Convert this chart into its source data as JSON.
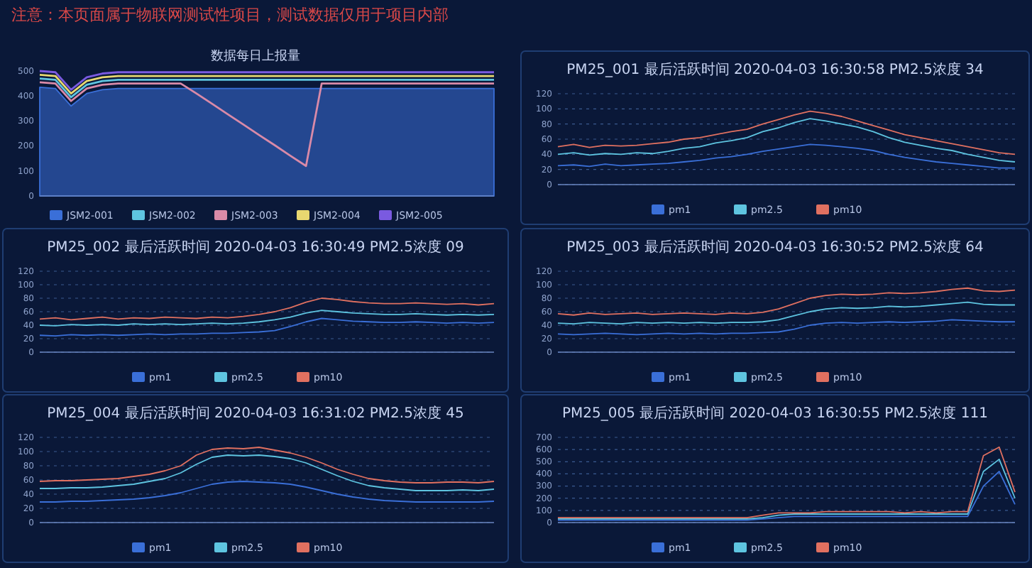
{
  "chart_data": [
    {
      "type": "area",
      "title": "数据每日上报量",
      "annotations": [
        "注意：本页面属于物联网测试性项目，测试数据仅用于项目内部"
      ],
      "categories": [
        null,
        null,
        null,
        null,
        null,
        null,
        null,
        null,
        null,
        null,
        null,
        null,
        null,
        null,
        null,
        null,
        null,
        null,
        null,
        null,
        null,
        null,
        null,
        null,
        null,
        null,
        null,
        null,
        null,
        null
      ],
      "ylim": [
        0,
        500
      ],
      "yticks": [
        0,
        100,
        200,
        300,
        400,
        500
      ],
      "tick_labels": "y",
      "legend": "bottom",
      "series": [
        {
          "name": "JSM2-001",
          "color": "#3a6fd8",
          "values": [
            435,
            430,
            360,
            410,
            425,
            430,
            430,
            430,
            430,
            430,
            430,
            430,
            430,
            430,
            430,
            430,
            430,
            430,
            430,
            430,
            430,
            430,
            430,
            430,
            430,
            430,
            430,
            430,
            430,
            430
          ]
        },
        {
          "name": "JSM2-002",
          "type": "line",
          "color": "#5ec4e0",
          "values": [
            470,
            465,
            395,
            445,
            460,
            465,
            465,
            465,
            465,
            465,
            465,
            465,
            465,
            465,
            465,
            465,
            465,
            465,
            465,
            465,
            465,
            465,
            465,
            465,
            465,
            465,
            465,
            465,
            465,
            465
          ]
        },
        {
          "name": "JSM2-003",
          "type": "line",
          "color": "#d98aa8",
          "values": [
            455,
            450,
            380,
            430,
            445,
            450,
            450,
            450,
            450,
            450,
            410,
            369,
            327,
            286,
            244,
            203,
            161,
            120,
            450,
            450,
            450,
            450,
            450,
            450,
            450,
            450,
            450,
            450,
            450,
            450
          ]
        },
        {
          "name": "JSM2-004",
          "type": "line",
          "color": "#e8d870",
          "values": [
            485,
            480,
            410,
            460,
            475,
            480,
            480,
            480,
            480,
            480,
            480,
            480,
            480,
            480,
            480,
            480,
            480,
            480,
            480,
            480,
            480,
            480,
            480,
            480,
            480,
            480,
            480,
            480,
            480,
            480
          ]
        },
        {
          "name": "JSM2-005",
          "type": "line",
          "color": "#7a5ae0",
          "values": [
            500,
            495,
            425,
            475,
            490,
            495,
            495,
            495,
            495,
            495,
            495,
            495,
            495,
            495,
            495,
            495,
            495,
            495,
            495,
            495,
            495,
            495,
            495,
            495,
            495,
            495,
            495,
            495,
            495,
            495
          ]
        }
      ]
    },
    {
      "type": "line",
      "title": "PM25_001 最后活跃时间 2020-04-03 16:30:58 PM2.5浓度 34",
      "categories": [
        null,
        null,
        null,
        null,
        null,
        null,
        null,
        null,
        null,
        null,
        null,
        null,
        null,
        null,
        null,
        null,
        null,
        null,
        null,
        null,
        null,
        null,
        null,
        null,
        null,
        null,
        null,
        null,
        null,
        null
      ],
      "ylim": [
        0,
        120
      ],
      "yticks": [
        0,
        20,
        40,
        60,
        80,
        100,
        120
      ],
      "tick_labels": "y",
      "grid": "y",
      "legend": "bottom",
      "series": [
        {
          "name": "pm1",
          "color": "#3a6fd8",
          "values": [
            25,
            26,
            24,
            27,
            25,
            26,
            27,
            28,
            30,
            32,
            35,
            37,
            40,
            44,
            47,
            50,
            53,
            52,
            50,
            48,
            45,
            40,
            36,
            33,
            30,
            28,
            26,
            24,
            22,
            22
          ]
        },
        {
          "name": "pm2.5",
          "color": "#5ec4e0",
          "values": [
            40,
            42,
            39,
            41,
            40,
            42,
            41,
            44,
            48,
            50,
            55,
            58,
            62,
            70,
            75,
            82,
            87,
            84,
            80,
            76,
            70,
            62,
            56,
            52,
            48,
            45,
            40,
            36,
            32,
            30
          ]
        },
        {
          "name": "pm10",
          "color": "#e07060",
          "values": [
            50,
            53,
            49,
            52,
            51,
            52,
            54,
            56,
            60,
            62,
            66,
            70,
            73,
            80,
            86,
            92,
            97,
            94,
            90,
            84,
            78,
            72,
            66,
            62,
            58,
            54,
            50,
            46,
            42,
            40
          ]
        }
      ]
    },
    {
      "type": "line",
      "title": "PM25_002 最后活跃时间 2020-04-03 16:30:49 PM2.5浓度 09",
      "categories": [
        null,
        null,
        null,
        null,
        null,
        null,
        null,
        null,
        null,
        null,
        null,
        null,
        null,
        null,
        null,
        null,
        null,
        null,
        null,
        null,
        null,
        null,
        null,
        null,
        null,
        null,
        null,
        null,
        null,
        null
      ],
      "ylim": [
        0,
        120
      ],
      "yticks": [
        0,
        20,
        40,
        60,
        80,
        100,
        120
      ],
      "tick_labels": "y",
      "grid": "y",
      "legend": "bottom",
      "series": [
        {
          "name": "pm1",
          "color": "#3a6fd8",
          "values": [
            25,
            24,
            26,
            25,
            26,
            25,
            26,
            27,
            26,
            27,
            27,
            28,
            28,
            29,
            30,
            32,
            38,
            45,
            50,
            48,
            46,
            45,
            44,
            44,
            45,
            44,
            43,
            44,
            43,
            44
          ]
        },
        {
          "name": "pm2.5",
          "color": "#5ec4e0",
          "values": [
            40,
            39,
            41,
            40,
            41,
            40,
            42,
            41,
            42,
            41,
            42,
            43,
            42,
            43,
            45,
            48,
            52,
            58,
            62,
            60,
            58,
            57,
            56,
            56,
            57,
            56,
            55,
            56,
            55,
            56
          ]
        },
        {
          "name": "pm10",
          "color": "#e07060",
          "values": [
            49,
            51,
            48,
            50,
            52,
            49,
            51,
            50,
            52,
            51,
            50,
            52,
            51,
            53,
            56,
            60,
            66,
            74,
            80,
            78,
            75,
            73,
            72,
            72,
            73,
            72,
            71,
            72,
            70,
            72
          ]
        }
      ]
    },
    {
      "type": "line",
      "title": "PM25_003 最后活跃时间 2020-04-03 16:30:52 PM2.5浓度 64",
      "categories": [
        null,
        null,
        null,
        null,
        null,
        null,
        null,
        null,
        null,
        null,
        null,
        null,
        null,
        null,
        null,
        null,
        null,
        null,
        null,
        null,
        null,
        null,
        null,
        null,
        null,
        null,
        null,
        null,
        null,
        null
      ],
      "ylim": [
        0,
        120
      ],
      "yticks": [
        0,
        20,
        40,
        60,
        80,
        100,
        120
      ],
      "tick_labels": "y",
      "grid": "y",
      "legend": "bottom",
      "series": [
        {
          "name": "pm1",
          "color": "#3a6fd8",
          "values": [
            27,
            26,
            27,
            28,
            27,
            26,
            27,
            28,
            27,
            28,
            27,
            28,
            28,
            29,
            30,
            34,
            40,
            43,
            44,
            43,
            44,
            45,
            44,
            45,
            46,
            48,
            47,
            46,
            45,
            45
          ]
        },
        {
          "name": "pm2.5",
          "color": "#5ec4e0",
          "values": [
            43,
            42,
            44,
            43,
            42,
            44,
            43,
            44,
            43,
            44,
            43,
            44,
            44,
            45,
            48,
            54,
            60,
            64,
            66,
            65,
            66,
            68,
            67,
            68,
            70,
            72,
            74,
            71,
            70,
            70
          ]
        },
        {
          "name": "pm10",
          "color": "#e07060",
          "values": [
            57,
            55,
            58,
            56,
            57,
            58,
            56,
            57,
            58,
            57,
            56,
            58,
            57,
            59,
            64,
            72,
            80,
            84,
            86,
            85,
            86,
            88,
            87,
            88,
            90,
            93,
            95,
            91,
            90,
            92
          ]
        }
      ]
    },
    {
      "type": "line",
      "title": "PM25_004 最后活跃时间 2020-04-03 16:31:02 PM2.5浓度 45",
      "categories": [
        null,
        null,
        null,
        null,
        null,
        null,
        null,
        null,
        null,
        null,
        null,
        null,
        null,
        null,
        null,
        null,
        null,
        null,
        null,
        null,
        null,
        null,
        null,
        null,
        null,
        null,
        null,
        null,
        null,
        null
      ],
      "ylim": [
        0,
        120
      ],
      "yticks": [
        0,
        20,
        40,
        60,
        80,
        100,
        120
      ],
      "tick_labels": "y",
      "grid": "y",
      "legend": "bottom",
      "series": [
        {
          "name": "pm1",
          "color": "#3a6fd8",
          "values": [
            29,
            29,
            30,
            30,
            31,
            32,
            33,
            35,
            38,
            42,
            48,
            54,
            57,
            58,
            57,
            56,
            54,
            50,
            45,
            40,
            36,
            33,
            31,
            30,
            29,
            29,
            29,
            29,
            29,
            30
          ]
        },
        {
          "name": "pm2.5",
          "color": "#5ec4e0",
          "values": [
            48,
            48,
            49,
            49,
            50,
            52,
            54,
            58,
            62,
            70,
            82,
            92,
            95,
            94,
            95,
            93,
            90,
            84,
            75,
            66,
            58,
            52,
            49,
            47,
            45,
            45,
            45,
            46,
            45,
            47
          ]
        },
        {
          "name": "pm10",
          "color": "#e07060",
          "values": [
            58,
            59,
            59,
            60,
            61,
            62,
            65,
            68,
            73,
            80,
            95,
            103,
            105,
            104,
            106,
            102,
            98,
            92,
            84,
            75,
            68,
            62,
            59,
            57,
            56,
            56,
            57,
            57,
            56,
            58
          ]
        }
      ]
    },
    {
      "type": "line",
      "title": "PM25_005 最后活跃时间 2020-04-03 16:30:55 PM2.5浓度 111",
      "categories": [
        null,
        null,
        null,
        null,
        null,
        null,
        null,
        null,
        null,
        null,
        null,
        null,
        null,
        null,
        null,
        null,
        null,
        null,
        null,
        null,
        null,
        null,
        null,
        null,
        null,
        null,
        null,
        null,
        null,
        null
      ],
      "ylim": [
        0,
        700
      ],
      "yticks": [
        0,
        100,
        200,
        300,
        400,
        500,
        600,
        700
      ],
      "tick_labels": "y",
      "grid": "y",
      "legend": "bottom",
      "series": [
        {
          "name": "pm1",
          "color": "#3a6fd8",
          "values": [
            20,
            20,
            20,
            20,
            20,
            20,
            20,
            20,
            20,
            20,
            20,
            20,
            20,
            30,
            40,
            50,
            50,
            50,
            50,
            50,
            50,
            50,
            50,
            50,
            50,
            50,
            50,
            300,
            420,
            150
          ]
        },
        {
          "name": "pm2.5",
          "color": "#5ec4e0",
          "values": [
            30,
            30,
            30,
            30,
            30,
            30,
            30,
            30,
            30,
            30,
            30,
            30,
            30,
            40,
            60,
            70,
            70,
            70,
            70,
            70,
            70,
            70,
            70,
            70,
            70,
            70,
            70,
            420,
            520,
            200
          ]
        },
        {
          "name": "pm10",
          "color": "#e07060",
          "values": [
            40,
            40,
            40,
            40,
            40,
            40,
            40,
            40,
            40,
            40,
            40,
            40,
            40,
            60,
            80,
            80,
            80,
            90,
            90,
            90,
            90,
            90,
            80,
            90,
            80,
            90,
            90,
            550,
            620,
            250
          ]
        }
      ]
    }
  ]
}
